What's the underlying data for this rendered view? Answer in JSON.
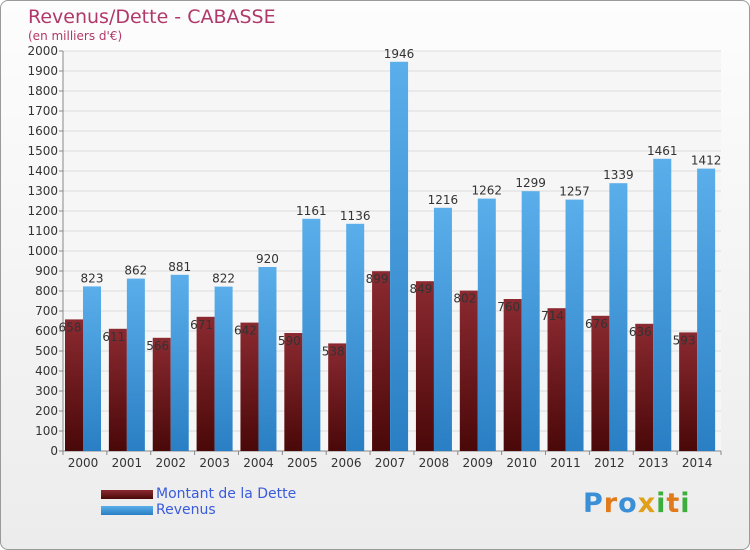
{
  "header": {
    "title": "Revenus/Dette - CABASSE",
    "subtitle": "(en milliers d'€)"
  },
  "colors": {
    "dette": "#7a1a22",
    "revenus": "#4aa3e6",
    "title": "#b0386a",
    "legend_text": "#3a5bdc"
  },
  "logo": {
    "text": "Proxiti"
  },
  "chart_data": {
    "type": "bar",
    "title": "Revenus/Dette - CABASSE",
    "subtitle": "(en milliers d'€)",
    "categories": [
      "2000",
      "2001",
      "2002",
      "2003",
      "2004",
      "2005",
      "2006",
      "2007",
      "2008",
      "2009",
      "2010",
      "2011",
      "2012",
      "2013",
      "2014"
    ],
    "series": [
      {
        "name": "Montant de la Dette",
        "values": [
          658,
          611,
          566,
          671,
          642,
          590,
          538,
          899,
          849,
          802,
          760,
          714,
          676,
          636,
          593
        ]
      },
      {
        "name": "Revenus",
        "values": [
          823,
          862,
          881,
          822,
          920,
          1161,
          1136,
          1946,
          1216,
          1262,
          1299,
          1257,
          1339,
          1461,
          1412
        ]
      }
    ],
    "ylim": [
      0,
      2000
    ],
    "yticks": [
      0,
      100,
      200,
      300,
      400,
      500,
      600,
      700,
      800,
      900,
      1000,
      1100,
      1200,
      1300,
      1400,
      1500,
      1600,
      1700,
      1800,
      1900,
      2000
    ],
    "grid": true,
    "legend_position": "bottom-left"
  }
}
